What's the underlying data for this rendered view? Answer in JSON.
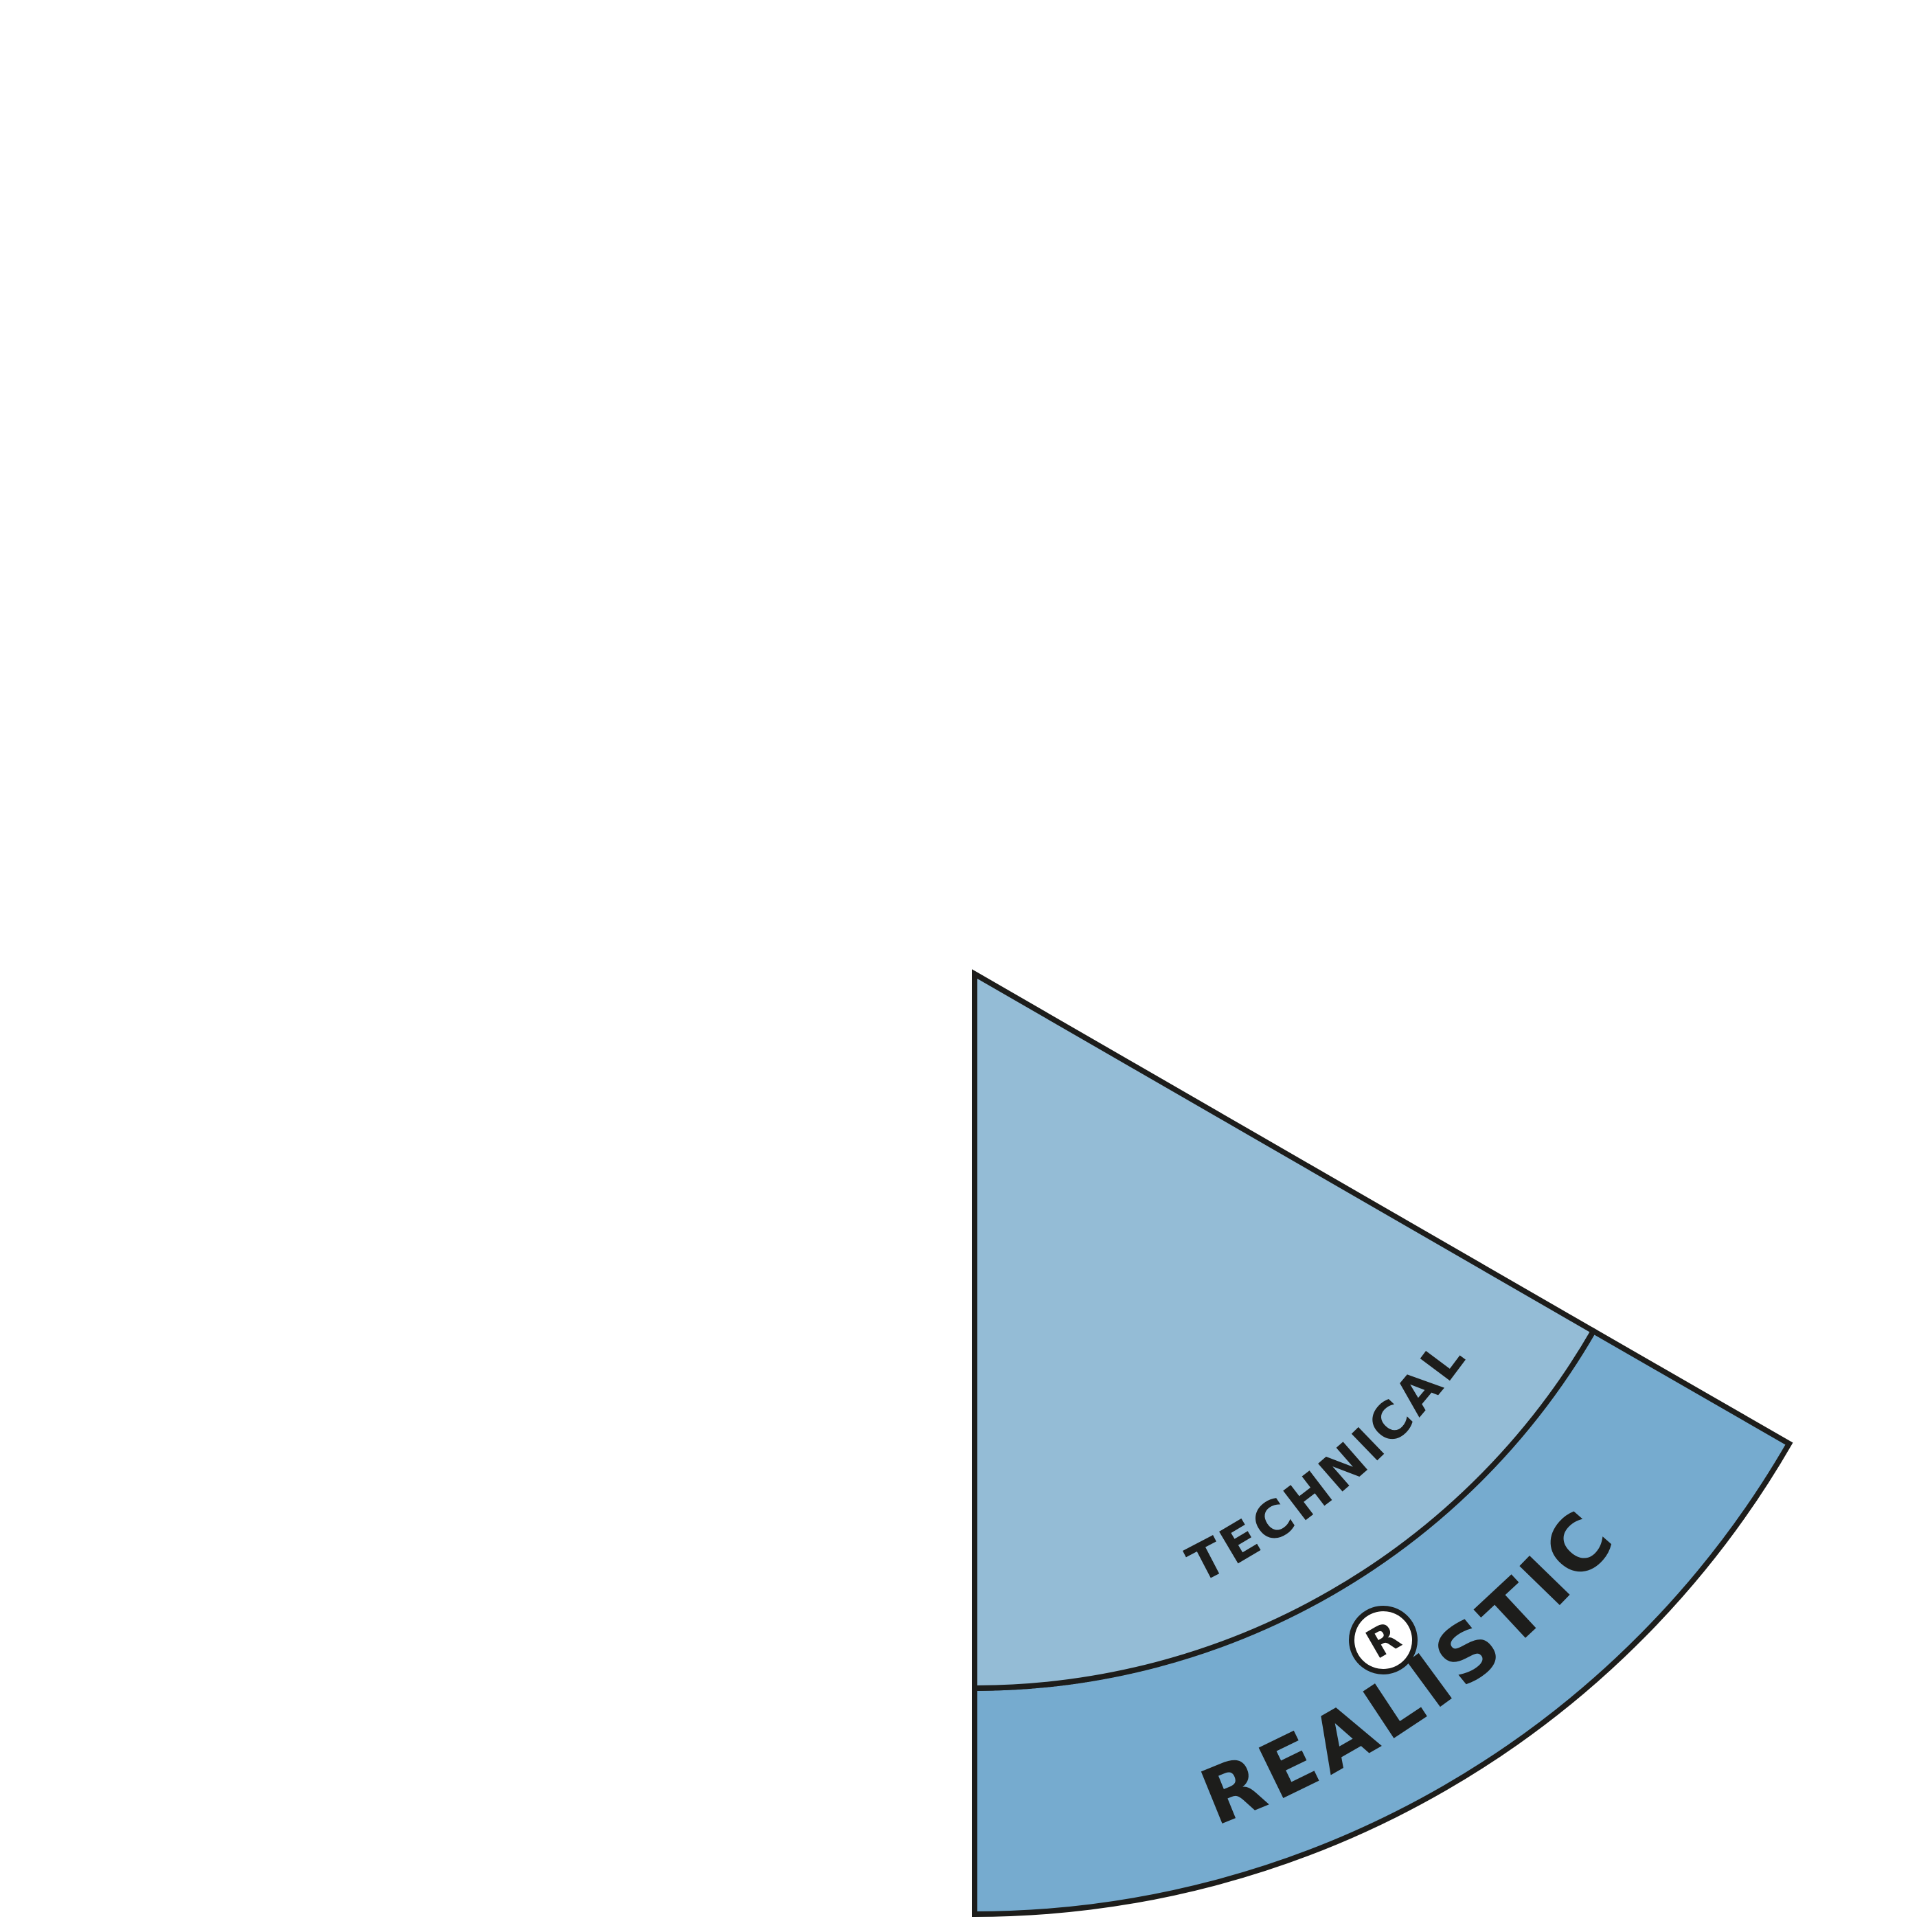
{
  "diagram": {
    "inner_band_label": "TECHNICAL",
    "outer_band_label": "REALISTIC",
    "badge_letter": "R",
    "colors": {
      "inner_band_fill": "#94bcd6",
      "outer_band_fill": "#76abcf",
      "stroke": "#1d1d1b",
      "badge_fill": "#ffffff"
    }
  }
}
